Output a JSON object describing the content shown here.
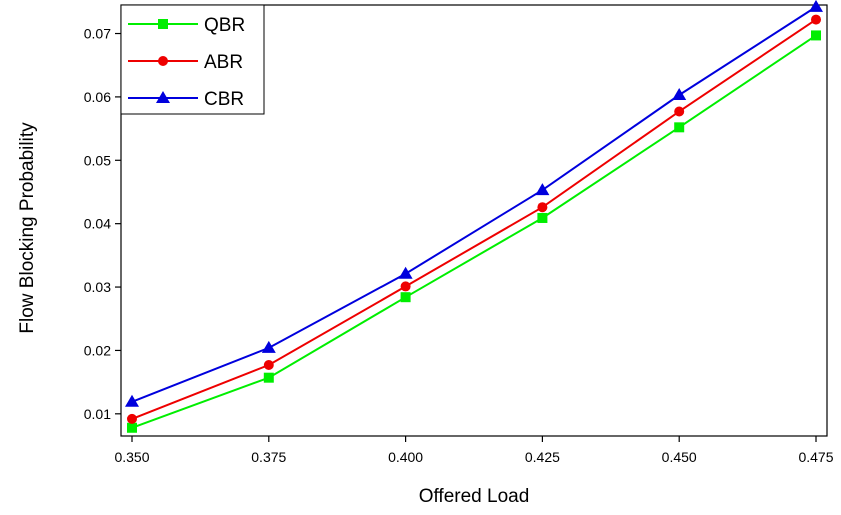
{
  "chart_data": {
    "type": "line",
    "title": "",
    "xlabel": "Offered Load",
    "ylabel": "Flow Blocking Probability",
    "xlim": [
      0.35,
      0.475
    ],
    "ylim": [
      0.0065,
      0.0745
    ],
    "x_ticks": [
      "0.350",
      "0.375",
      "0.400",
      "0.425",
      "0.450",
      "0.475"
    ],
    "y_ticks": [
      "0.01",
      "0.02",
      "0.03",
      "0.04",
      "0.05",
      "0.06",
      "0.07"
    ],
    "grid": false,
    "legend_position": "top-left",
    "x": [
      0.35,
      0.375,
      0.4,
      0.425,
      0.45,
      0.475
    ],
    "series": [
      {
        "name": "QBR",
        "color": "#00ee00",
        "marker": "square",
        "values": [
          0.0078,
          0.0157,
          0.0284,
          0.0409,
          0.0552,
          0.0697
        ]
      },
      {
        "name": "ABR",
        "color": "#ee0000",
        "marker": "circle",
        "values": [
          0.0092,
          0.0177,
          0.0301,
          0.0426,
          0.0577,
          0.0722
        ]
      },
      {
        "name": "CBR",
        "color": "#0000dd",
        "marker": "triangle",
        "values": [
          0.0119,
          0.0204,
          0.0321,
          0.0453,
          0.0603,
          0.0742
        ]
      }
    ]
  }
}
